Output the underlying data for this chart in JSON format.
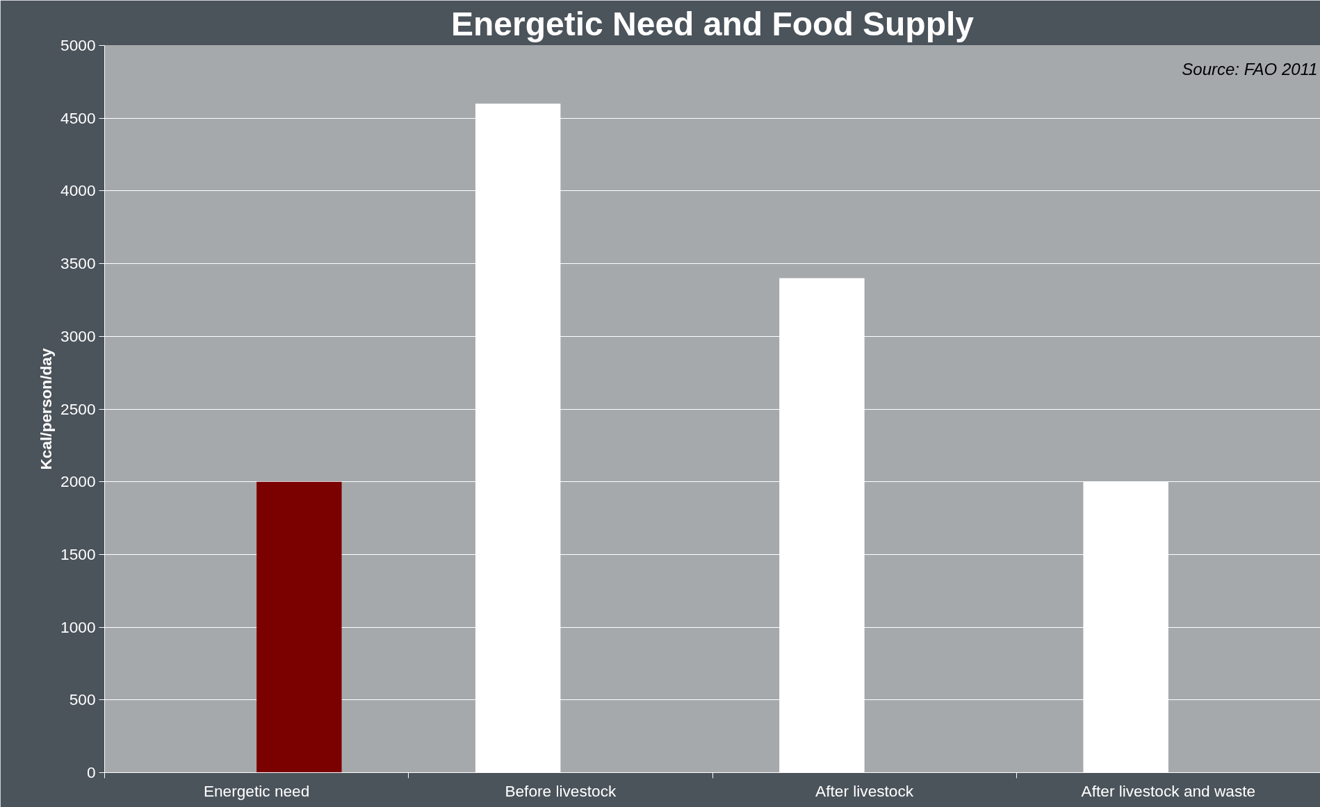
{
  "chart_data": {
    "type": "bar",
    "title": "Energetic Need and Food Supply",
    "ylabel": "Kcal/person/day",
    "categories": [
      "Energetic need",
      "Before livestock",
      "After livestock",
      "After livestock and waste"
    ],
    "series": [
      {
        "color": "#ffffff",
        "values": [
          null,
          4600,
          3400,
          2000
        ]
      },
      {
        "color": "#7b0000",
        "values": [
          2000,
          null,
          null,
          null
        ]
      }
    ],
    "ylim": [
      0,
      5000
    ],
    "yticks": [
      0,
      500,
      1000,
      1500,
      2000,
      2500,
      3000,
      3500,
      4000,
      4500,
      5000
    ],
    "grid": "y",
    "annotations": [
      "Source: FAO 2011"
    ]
  }
}
